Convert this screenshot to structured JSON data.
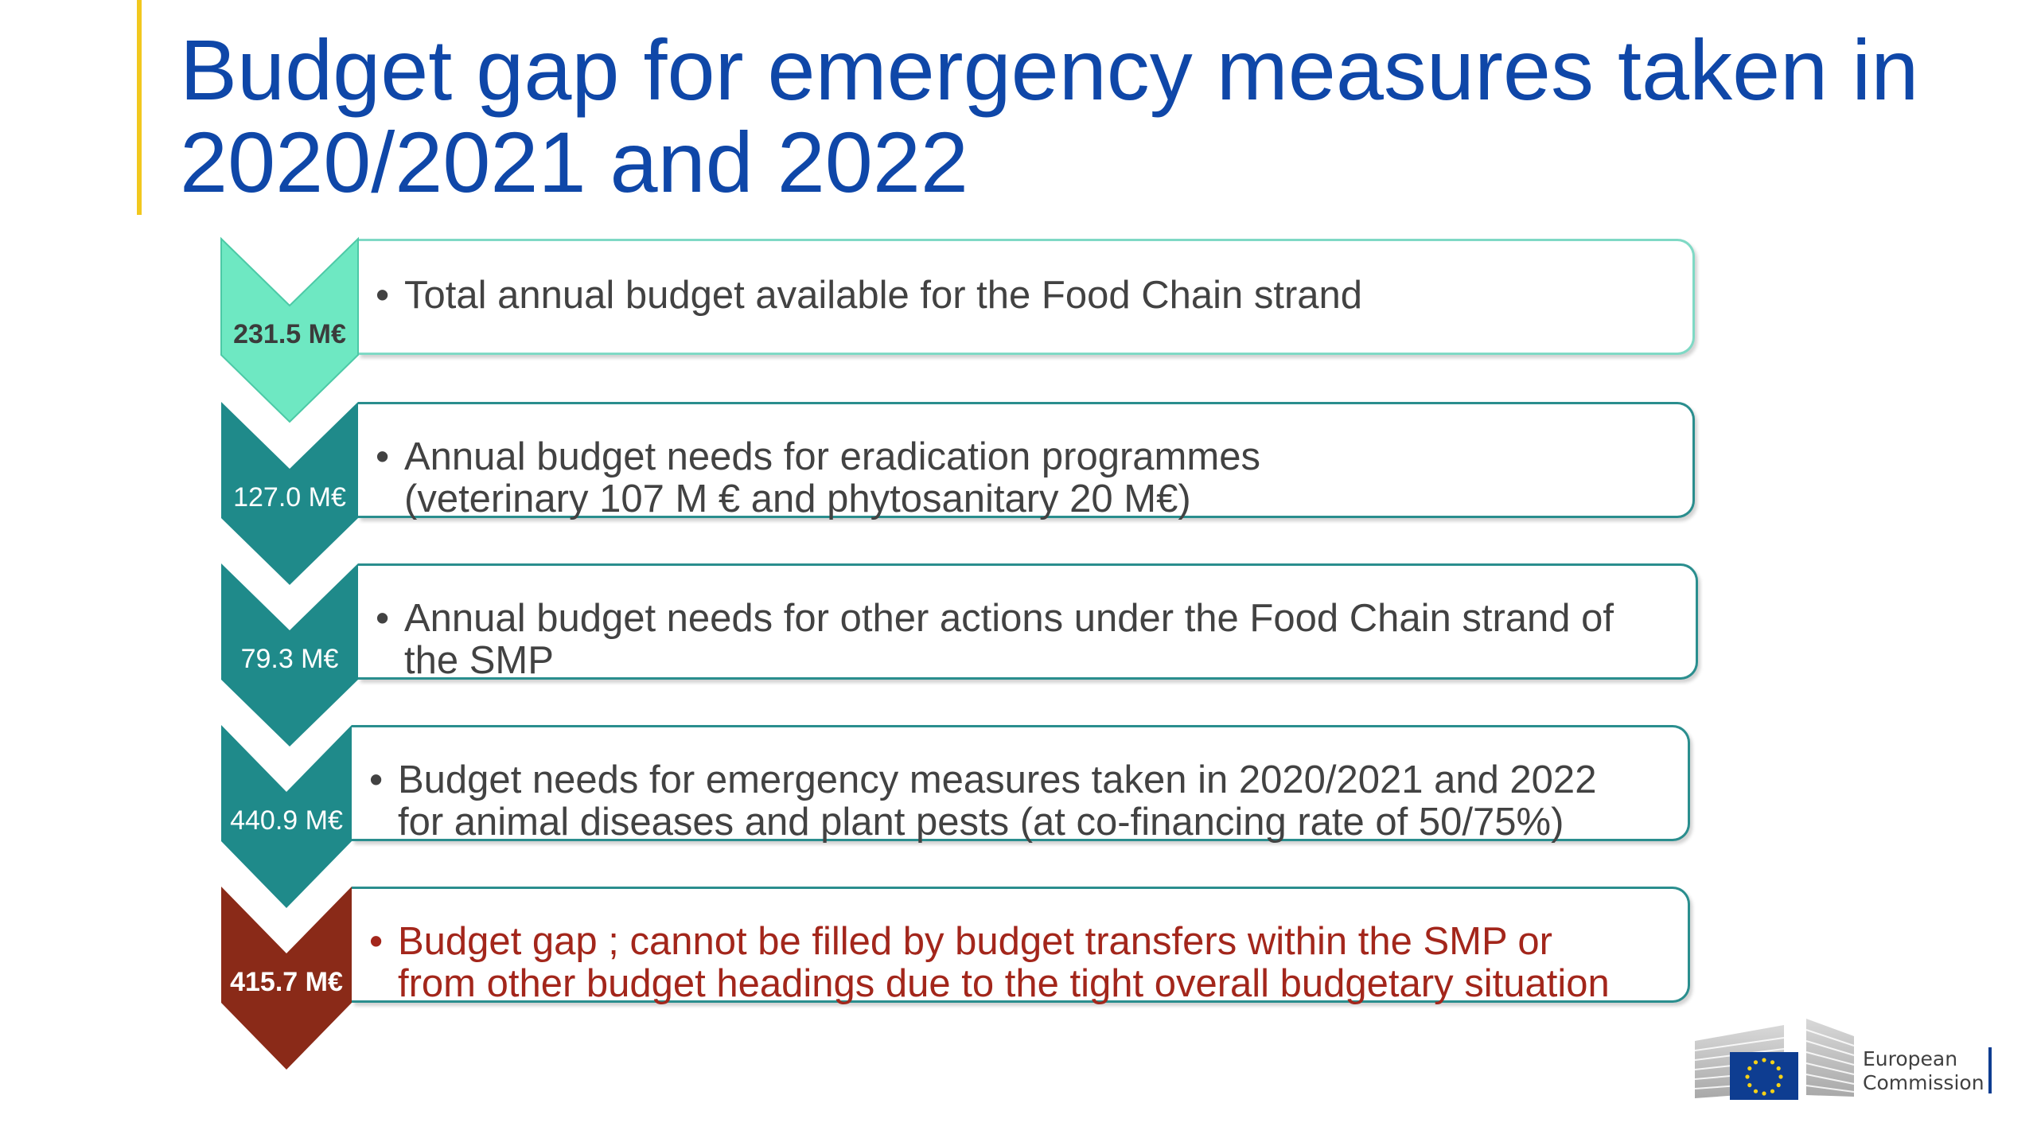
{
  "title": {
    "line1": "Budget gap for emergency measures taken in",
    "line2": "2020/2021 and 2022"
  },
  "colors": {
    "title": "#0f47a8",
    "accent_bar": "#f2c81e",
    "chevron_light": "#6ee8c2",
    "chevron_teal": "#1f8a8a",
    "chevron_red": "#8a2a18",
    "gap_text": "#a3261b",
    "body_text": "#424242"
  },
  "steps": [
    {
      "value": "231.5 M€",
      "bullet": "•",
      "lines": [
        "Total annual budget available for the Food Chain strand"
      ],
      "tone": "light"
    },
    {
      "value": "127.0 M€",
      "bullet": "•",
      "lines": [
        "Annual budget needs for eradication programmes",
        "(veterinary 107 M € and phytosanitary 20 M€)"
      ],
      "tone": "teal"
    },
    {
      "value": "79.3 M€",
      "bullet": "•",
      "lines": [
        "Annual budget needs for other actions under the Food Chain strand of",
        "the SMP"
      ],
      "tone": "teal"
    },
    {
      "value": "440.9 M€",
      "bullet": "•",
      "lines": [
        "Budget needs for emergency measures taken in 2020/2021 and 2022",
        "for animal diseases and plant pests (at co-financing rate of 50/75%)"
      ],
      "tone": "teal"
    },
    {
      "value": "415.7 M€",
      "bullet": "•",
      "lines": [
        "Budget gap ; cannot be filled by budget transfers within the SMP or",
        "from other budget headings due to the tight overall budgetary situation"
      ],
      "tone": "red"
    }
  ],
  "logo": {
    "line1": "European",
    "line2": "Commission",
    "icon": "eu-flag-icon"
  }
}
